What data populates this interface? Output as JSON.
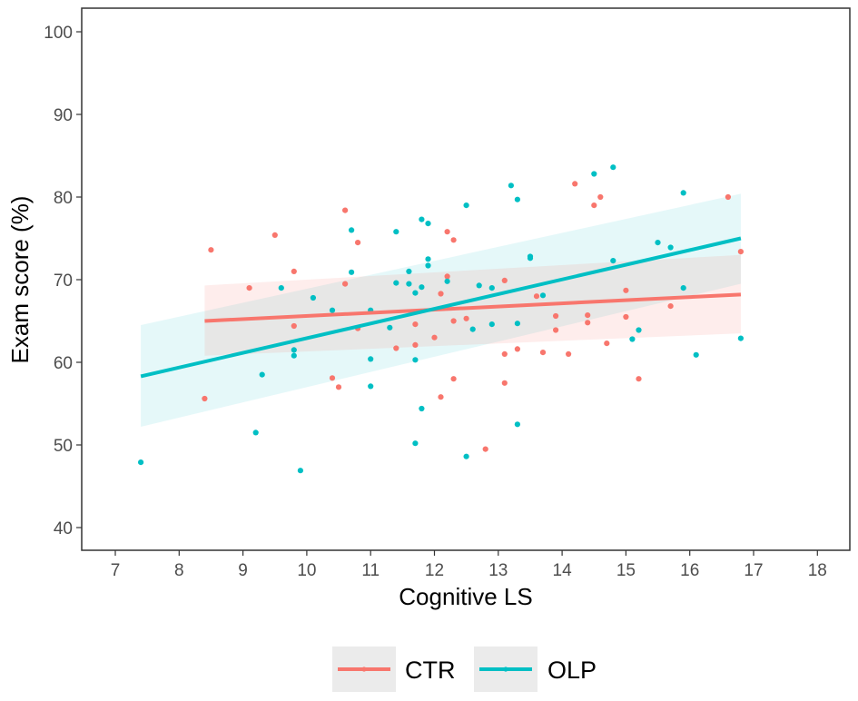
{
  "chart_data": {
    "type": "scatter",
    "xlabel": "Cognitive LS",
    "ylabel": "Exam score (%)",
    "xlim": [
      6.5,
      18.6
    ],
    "ylim": [
      37,
      103
    ],
    "x_ticks": [
      7,
      8,
      9,
      10,
      11,
      12,
      13,
      14,
      15,
      16,
      17,
      18
    ],
    "y_ticks": [
      40,
      50,
      60,
      70,
      80,
      90,
      100
    ],
    "grid": false,
    "legend_position": "bottom",
    "series": [
      {
        "name": "CTR",
        "color": "#F8766D",
        "points": [
          [
            8.4,
            55.6
          ],
          [
            8.5,
            73.6
          ],
          [
            9.1,
            69.0
          ],
          [
            9.5,
            75.4
          ],
          [
            9.8,
            71.0
          ],
          [
            9.8,
            64.4
          ],
          [
            10.4,
            58.1
          ],
          [
            10.5,
            57.0
          ],
          [
            10.6,
            78.4
          ],
          [
            10.6,
            69.5
          ],
          [
            10.8,
            64.1
          ],
          [
            10.8,
            74.5
          ],
          [
            11.4,
            61.7
          ],
          [
            11.7,
            62.1
          ],
          [
            11.7,
            64.6
          ],
          [
            12.0,
            63.0
          ],
          [
            12.1,
            55.8
          ],
          [
            12.1,
            68.3
          ],
          [
            12.2,
            75.8
          ],
          [
            12.2,
            70.4
          ],
          [
            12.3,
            74.8
          ],
          [
            12.3,
            65.0
          ],
          [
            12.3,
            58.0
          ],
          [
            12.5,
            65.3
          ],
          [
            12.8,
            49.5
          ],
          [
            13.1,
            57.5
          ],
          [
            13.1,
            61.0
          ],
          [
            13.1,
            69.9
          ],
          [
            13.3,
            61.6
          ],
          [
            13.6,
            68.0
          ],
          [
            13.7,
            61.2
          ],
          [
            13.9,
            65.6
          ],
          [
            13.9,
            63.9
          ],
          [
            14.1,
            61.0
          ],
          [
            14.2,
            81.6
          ],
          [
            14.4,
            65.7
          ],
          [
            14.4,
            64.8
          ],
          [
            14.5,
            79.0
          ],
          [
            14.6,
            80.0
          ],
          [
            14.7,
            62.3
          ],
          [
            15.0,
            68.7
          ],
          [
            15.0,
            65.5
          ],
          [
            15.2,
            58.0
          ],
          [
            15.7,
            66.8
          ],
          [
            16.6,
            80.0
          ],
          [
            16.8,
            73.4
          ]
        ],
        "fit": {
          "x": [
            8.4,
            16.8
          ],
          "y": [
            65.0,
            68.2
          ]
        },
        "ci_lower": [
          60.8,
          63.5
        ],
        "ci_upper": [
          69.3,
          73.0
        ]
      },
      {
        "name": "OLP",
        "color": "#00BFC4",
        "points": [
          [
            7.4,
            47.9
          ],
          [
            9.2,
            51.5
          ],
          [
            9.3,
            58.5
          ],
          [
            9.6,
            69.0
          ],
          [
            9.8,
            60.8
          ],
          [
            9.8,
            61.5
          ],
          [
            9.9,
            46.9
          ],
          [
            10.1,
            67.8
          ],
          [
            10.4,
            66.3
          ],
          [
            10.7,
            76.0
          ],
          [
            10.7,
            70.9
          ],
          [
            11.0,
            66.3
          ],
          [
            11.0,
            60.4
          ],
          [
            11.0,
            57.1
          ],
          [
            11.3,
            64.2
          ],
          [
            11.4,
            75.8
          ],
          [
            11.4,
            69.6
          ],
          [
            11.6,
            69.5
          ],
          [
            11.6,
            71.0
          ],
          [
            11.7,
            60.3
          ],
          [
            11.7,
            50.2
          ],
          [
            11.7,
            68.4
          ],
          [
            11.8,
            77.3
          ],
          [
            11.8,
            69.1
          ],
          [
            11.8,
            54.4
          ],
          [
            11.9,
            71.7
          ],
          [
            11.9,
            72.5
          ],
          [
            11.9,
            76.8
          ],
          [
            12.2,
            69.8
          ],
          [
            12.5,
            79.0
          ],
          [
            12.5,
            48.6
          ],
          [
            12.6,
            64.0
          ],
          [
            12.7,
            69.3
          ],
          [
            12.9,
            69.0
          ],
          [
            12.9,
            64.6
          ],
          [
            13.2,
            81.4
          ],
          [
            13.3,
            79.7
          ],
          [
            13.3,
            52.5
          ],
          [
            13.3,
            64.7
          ],
          [
            13.5,
            72.8
          ],
          [
            13.5,
            72.6
          ],
          [
            13.7,
            68.1
          ],
          [
            14.5,
            82.8
          ],
          [
            14.8,
            83.6
          ],
          [
            14.8,
            72.3
          ],
          [
            15.1,
            62.8
          ],
          [
            15.2,
            63.9
          ],
          [
            15.5,
            74.5
          ],
          [
            15.7,
            73.9
          ],
          [
            15.9,
            69.0
          ],
          [
            15.9,
            80.5
          ],
          [
            16.1,
            60.9
          ],
          [
            16.8,
            62.9
          ]
        ],
        "fit": {
          "x": [
            7.4,
            16.8
          ],
          "y": [
            58.3,
            75.0
          ]
        },
        "ci_lower": [
          52.2,
          69.5
        ],
        "ci_upper": [
          64.5,
          80.4
        ]
      }
    ]
  }
}
